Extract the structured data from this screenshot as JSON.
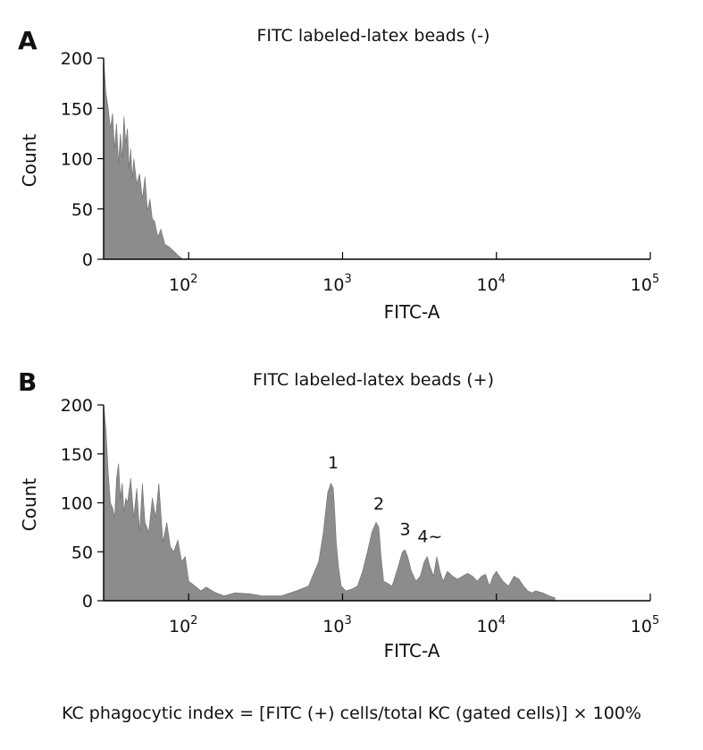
{
  "chart_data": [
    {
      "type": "area",
      "panel": "A",
      "title": "FITC labeled-latex beads (-)",
      "xlabel": "FITC-A",
      "ylabel": "Count",
      "xscale": "log",
      "xlim": [
        28,
        100000
      ],
      "ylim": [
        0,
        200
      ],
      "yticks": [
        0,
        50,
        100,
        150,
        200
      ],
      "xticks": [
        {
          "value": 100,
          "base": "10",
          "exp": "2"
        },
        {
          "value": 1000,
          "base": "10",
          "exp": "3"
        },
        {
          "value": 10000,
          "base": "10",
          "exp": "4"
        },
        {
          "value": 100000,
          "base": "10",
          "exp": "5"
        }
      ],
      "series": [
        {
          "x": [
            28,
            29,
            30,
            31,
            32,
            33,
            34,
            35,
            36,
            37,
            38,
            39,
            40,
            41,
            42,
            43,
            44,
            46,
            48,
            50,
            52,
            54,
            56,
            58,
            60,
            63,
            66,
            70,
            75,
            80,
            85,
            90
          ],
          "y": [
            200,
            165,
            150,
            130,
            145,
            110,
            135,
            95,
            125,
            100,
            142,
            115,
            130,
            90,
            110,
            80,
            100,
            75,
            85,
            60,
            82,
            48,
            60,
            40,
            38,
            22,
            30,
            15,
            12,
            8,
            4,
            1
          ]
        }
      ],
      "annotations": []
    },
    {
      "type": "area",
      "panel": "B",
      "title": "FITC labeled-latex beads (+)",
      "xlabel": "FITC-A",
      "ylabel": "Count",
      "xscale": "log",
      "xlim": [
        28,
        100000
      ],
      "ylim": [
        0,
        200
      ],
      "yticks": [
        0,
        50,
        100,
        150,
        200
      ],
      "xticks": [
        {
          "value": 100,
          "base": "10",
          "exp": "2"
        },
        {
          "value": 1000,
          "base": "10",
          "exp": "3"
        },
        {
          "value": 10000,
          "base": "10",
          "exp": "4"
        },
        {
          "value": 100000,
          "base": "10",
          "exp": "5"
        }
      ],
      "series": [
        {
          "x": [
            28,
            29,
            30,
            31,
            32,
            33,
            34,
            35,
            36,
            37,
            38,
            39,
            40,
            42,
            44,
            46,
            48,
            50,
            52,
            55,
            58,
            61,
            64,
            68,
            72,
            76,
            80,
            85,
            90,
            95,
            100,
            110,
            120,
            130,
            150,
            170,
            200,
            250,
            300,
            400,
            500,
            600,
            700,
            750,
            800,
            840,
            870,
            890,
            910,
            940,
            980,
            1050,
            1150,
            1250,
            1350,
            1450,
            1550,
            1650,
            1720,
            1780,
            1850,
            1950,
            2100,
            2300,
            2450,
            2550,
            2650,
            2800,
            3000,
            3200,
            3400,
            3550,
            3700,
            3900,
            4100,
            4300,
            4500,
            4800,
            5200,
            5600,
            6000,
            6500,
            7000,
            7500,
            8000,
            8500,
            9000,
            9500,
            10000,
            11000,
            12000,
            13000,
            14000,
            15000,
            16000,
            17000,
            18000,
            20000,
            22000,
            24000
          ],
          "y": [
            200,
            175,
            130,
            100,
            95,
            85,
            125,
            140,
            105,
            120,
            90,
            105,
            100,
            125,
            85,
            115,
            70,
            120,
            80,
            70,
            105,
            85,
            120,
            60,
            80,
            55,
            50,
            62,
            40,
            45,
            20,
            15,
            10,
            14,
            8,
            5,
            8,
            7,
            5,
            5,
            10,
            15,
            40,
            70,
            110,
            120,
            115,
            90,
            60,
            35,
            15,
            10,
            12,
            15,
            30,
            50,
            70,
            80,
            75,
            45,
            20,
            18,
            15,
            35,
            50,
            52,
            45,
            30,
            20,
            25,
            40,
            45,
            35,
            25,
            45,
            30,
            20,
            30,
            25,
            22,
            25,
            28,
            25,
            20,
            25,
            27,
            15,
            25,
            30,
            20,
            15,
            25,
            22,
            15,
            10,
            8,
            10,
            8,
            5,
            3
          ],
          "labels": [
            {
              "text": "1",
              "x": 870,
              "y": 124
            },
            {
              "text": "2",
              "x": 1720,
              "y": 82
            },
            {
              "text": "3",
              "x": 2550,
              "y": 56
            },
            {
              "text": "4~",
              "x": 3700,
              "y": 49
            }
          ]
        }
      ]
    }
  ],
  "footer": {
    "formula": "KC phagocytic index = [FITC (+) cells/total KC (gated cells)] × 100%"
  }
}
